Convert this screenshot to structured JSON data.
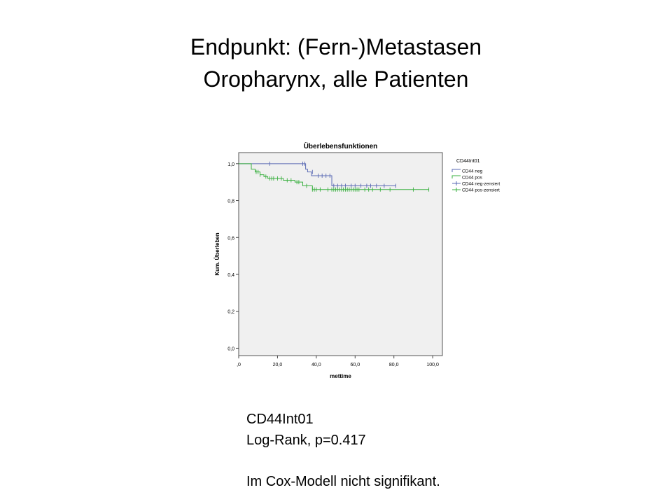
{
  "slide": {
    "title_line1": "Endpunkt: (Fern-)Metastasen",
    "title_line2": "Oropharynx, alle Patienten"
  },
  "notes": {
    "group_variable": "CD44Int01",
    "test_result": "Log-Rank, p=0.417",
    "cox_result": "Im Cox-Modell nicht signifikant."
  },
  "chart_data": {
    "type": "line",
    "subtype": "kaplan-meier-step",
    "title": "Überlebensfunktionen",
    "xlabel": "mettime",
    "ylabel": "Kum. Überleben",
    "xlim": [
      0,
      105
    ],
    "ylim": [
      -0.04,
      1.06
    ],
    "x_ticks": [
      0,
      20,
      40,
      60,
      80,
      100
    ],
    "x_tick_labels": [
      ",0",
      "20,0",
      "40,0",
      "60,0",
      "80,0",
      "100,0"
    ],
    "y_ticks": [
      0,
      0.2,
      0.4,
      0.6,
      0.8,
      1.0
    ],
    "y_tick_labels": [
      "0,0",
      "0,2",
      "0,4",
      "0,6",
      "0,8",
      "1,0"
    ],
    "plot_background": "#f0f0f0",
    "legend_title": "CD44Int01",
    "legend_position": "right",
    "legend": [
      "CD44 neg",
      "CD44 pos",
      "CD44 neg-zensiert",
      "CD44 pos-zensiert"
    ],
    "series": [
      {
        "name": "CD44 neg",
        "color": "#5a6ab4",
        "x": [
          0,
          34.5,
          35.5,
          37.5,
          48,
          81
        ],
        "y": [
          1.0,
          0.97,
          0.955,
          0.935,
          0.88,
          0.88
        ],
        "censored_x": [
          16,
          33,
          34,
          38,
          41,
          43,
          45,
          47,
          49,
          51,
          53,
          55,
          58,
          60,
          63,
          66,
          68,
          71,
          75,
          81
        ],
        "censored_y": [
          1.0,
          1.0,
          1.0,
          0.955,
          0.935,
          0.935,
          0.935,
          0.935,
          0.88,
          0.88,
          0.88,
          0.88,
          0.88,
          0.88,
          0.88,
          0.88,
          0.88,
          0.88,
          0.88,
          0.88
        ]
      },
      {
        "name": "CD44 pos",
        "color": "#3ab040",
        "x": [
          0,
          6.5,
          8.5,
          11,
          13,
          15,
          23,
          29,
          33,
          38,
          98
        ],
        "y": [
          1.0,
          0.97,
          0.955,
          0.94,
          0.93,
          0.92,
          0.91,
          0.9,
          0.88,
          0.86,
          0.86
        ],
        "censored_x": [
          9,
          10,
          11,
          14,
          16,
          17,
          18,
          20,
          22,
          25,
          27,
          30,
          31,
          35,
          38,
          39,
          40,
          42,
          46,
          48,
          49,
          50,
          51,
          52,
          53,
          54,
          55,
          56,
          57,
          58,
          59,
          60,
          61,
          62,
          65,
          67,
          69,
          73,
          78,
          90,
          98
        ],
        "censored_y": [
          0.955,
          0.955,
          0.94,
          0.93,
          0.92,
          0.92,
          0.92,
          0.92,
          0.92,
          0.91,
          0.91,
          0.9,
          0.9,
          0.88,
          0.86,
          0.86,
          0.86,
          0.86,
          0.86,
          0.86,
          0.86,
          0.86,
          0.86,
          0.86,
          0.86,
          0.86,
          0.86,
          0.86,
          0.86,
          0.86,
          0.86,
          0.86,
          0.86,
          0.86,
          0.86,
          0.86,
          0.86,
          0.86,
          0.86,
          0.86,
          0.86
        ]
      }
    ]
  }
}
